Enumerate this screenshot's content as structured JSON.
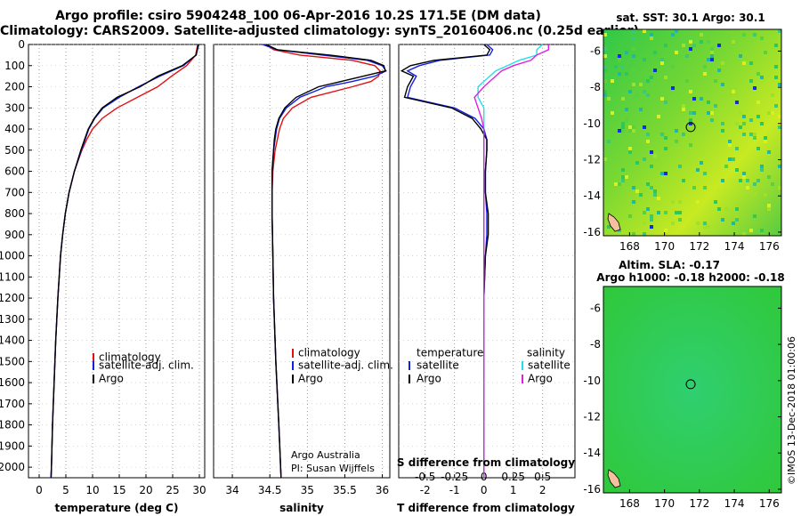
{
  "titles": {
    "line1": "Argo profile: csiro 5904248_100 06-Apr-2016 10.2S 171.5E (DM data)",
    "line2": "Climatology: CARS2009. Satellite-adjusted climatology: synTS_20160406.nc (0.25d earlier)"
  },
  "colors": {
    "climatology": "#e01010",
    "satellite": "#1020e0",
    "argo": "#000000",
    "sat_salinity": "#20e0e8",
    "argo_salinity": "#e020e0"
  },
  "chart_data": [
    {
      "type": "line",
      "name": "temperature-profile",
      "xlabel": "temperature (deg C)",
      "xlim": [
        -2,
        31
      ],
      "ylim": [
        2050,
        0
      ],
      "xticks": [
        "0",
        "5",
        "10",
        "15",
        "20",
        "25",
        "30"
      ],
      "yticks": [
        "0",
        "100",
        "200",
        "300",
        "400",
        "500",
        "600",
        "700",
        "800",
        "900",
        "1000",
        "1100",
        "1200",
        "1300",
        "1400",
        "1500",
        "1600",
        "1700",
        "1800",
        "1900",
        "2000"
      ],
      "depth": [
        0,
        50,
        100,
        150,
        200,
        250,
        300,
        350,
        400,
        450,
        500,
        600,
        700,
        800,
        900,
        1000,
        1200,
        1400,
        1600,
        1800,
        2000,
        2050
      ],
      "series": [
        {
          "name": "climatology",
          "values": [
            29.7,
            29.3,
            27.6,
            24.8,
            22.2,
            18.4,
            14.6,
            11.8,
            10.0,
            8.9,
            8.0,
            6.6,
            5.6,
            4.9,
            4.4,
            4.0,
            3.5,
            3.1,
            2.8,
            2.5,
            2.3,
            2.2
          ]
        },
        {
          "name": "satellite-adj. clim.",
          "values": [
            29.9,
            29.4,
            27.0,
            22.6,
            18.6,
            15.0,
            12.0,
            10.4,
            9.3,
            8.6,
            7.9,
            6.6,
            5.6,
            4.9,
            4.4,
            4.0,
            3.5,
            3.1,
            2.8,
            2.5,
            2.3,
            2.2
          ]
        },
        {
          "name": "Argo",
          "values": [
            29.8,
            29.4,
            26.8,
            22.2,
            18.9,
            14.6,
            11.8,
            10.3,
            9.2,
            8.5,
            7.8,
            6.6,
            5.6,
            4.9,
            4.4,
            4.0,
            3.5,
            3.1,
            2.8,
            2.5,
            2.3,
            2.25
          ]
        }
      ],
      "legend": [
        "climatology",
        "satellite-adj. clim.",
        "Argo"
      ]
    },
    {
      "type": "line",
      "name": "salinity-profile",
      "xlabel": "salinity",
      "xlim": [
        33.75,
        36.1
      ],
      "ylim": [
        2050,
        0
      ],
      "xticks": [
        "34",
        "34.5",
        "35",
        "35.5",
        "36"
      ],
      "depth": [
        0,
        25,
        50,
        75,
        100,
        125,
        150,
        175,
        200,
        250,
        300,
        350,
        400,
        450,
        500,
        600,
        700,
        800,
        1000,
        1200,
        1500,
        1800,
        2050
      ],
      "series": [
        {
          "name": "climatology",
          "values": [
            34.45,
            34.55,
            34.9,
            35.6,
            35.9,
            35.97,
            35.95,
            35.85,
            35.6,
            35.05,
            34.8,
            34.68,
            34.63,
            34.6,
            34.57,
            34.54,
            34.53,
            34.53,
            34.54,
            34.55,
            34.58,
            34.62,
            34.65
          ]
        },
        {
          "name": "satellite-adj. clim.",
          "values": [
            34.4,
            34.6,
            35.2,
            35.8,
            36.0,
            36.05,
            35.9,
            35.6,
            35.25,
            34.9,
            34.72,
            34.63,
            34.59,
            34.57,
            34.55,
            34.53,
            34.53,
            34.53,
            34.54,
            34.55,
            34.58,
            34.62,
            34.65
          ]
        },
        {
          "name": "Argo",
          "values": [
            34.45,
            34.6,
            35.3,
            35.85,
            36.02,
            36.04,
            35.75,
            35.45,
            35.15,
            34.85,
            34.7,
            34.62,
            34.58,
            34.56,
            34.55,
            34.53,
            34.53,
            34.53,
            34.54,
            34.55,
            34.58,
            34.62,
            34.65
          ]
        }
      ],
      "legend": [
        "climatology",
        "satellite-adj. clim.",
        "Argo"
      ],
      "annotation_line1": "Argo Australia",
      "annotation_line2": "PI: Susan Wijffels"
    },
    {
      "type": "line",
      "name": "difference-profile",
      "xlabel": "T difference from climatology",
      "top_axis_label": "S difference from climatology",
      "xlim": [
        -2.9,
        3.1
      ],
      "ylim": [
        2050,
        0
      ],
      "xticks": [
        "-2",
        "-1",
        "0",
        "1",
        "2"
      ],
      "top_ticks": [
        "-0.5",
        "-0.25",
        "0",
        "0.25",
        "0.5"
      ],
      "depth": [
        0,
        25,
        50,
        75,
        100,
        125,
        150,
        200,
        250,
        300,
        350,
        400,
        450,
        500,
        600,
        700,
        800,
        900,
        1000,
        1200,
        1400,
        1600,
        1800,
        2000,
        2050
      ],
      "series": [
        {
          "name": "temperature satellite",
          "values": [
            0.1,
            0.3,
            0.2,
            -1.5,
            -2.2,
            -2.6,
            -2.3,
            -2.5,
            -2.6,
            -1.0,
            -0.3,
            0.0,
            0.1,
            0.1,
            0.05,
            0.05,
            0.1,
            0.1,
            0.05,
            0.0,
            0.0,
            0.0,
            0.0,
            0.0,
            0.0
          ]
        },
        {
          "name": "temperature Argo",
          "values": [
            0.0,
            0.2,
            0.1,
            -1.7,
            -2.5,
            -2.8,
            -2.4,
            -2.6,
            -2.7,
            -1.1,
            -0.4,
            -0.1,
            0.1,
            0.1,
            0.05,
            0.05,
            0.15,
            0.15,
            0.05,
            0.0,
            0.0,
            0.0,
            0.0,
            0.0,
            0.0
          ]
        },
        {
          "name": "salinity satellite",
          "values": [
            0.5,
            0.45,
            0.45,
            0.3,
            0.2,
            0.1,
            0.05,
            -0.05,
            -0.05,
            0.0,
            0.0,
            0.0,
            0.0,
            0.0,
            0.0,
            0.0,
            0.0,
            0.0,
            0.0,
            0.0,
            0.0,
            0.0,
            0.0,
            0.0,
            0.0
          ]
        },
        {
          "name": "salinity Argo",
          "values": [
            0.55,
            0.55,
            0.45,
            0.4,
            0.25,
            0.15,
            0.1,
            0.0,
            -0.08,
            -0.05,
            -0.02,
            0.0,
            0.0,
            0.0,
            0.0,
            0.0,
            0.0,
            0.0,
            0.0,
            0.0,
            0.0,
            0.0,
            0.0,
            0.0,
            0.0
          ]
        }
      ],
      "legend_left_title": "temperature",
      "legend_right_title": "salinity",
      "legend_left": [
        "satellite",
        "Argo"
      ],
      "legend_right": [
        "satellite",
        "Argo"
      ]
    },
    {
      "type": "heatmap",
      "name": "sst-map",
      "title": "sat. SST: 30.1 Argo: 30.1",
      "xticks": [
        "168",
        "170",
        "172",
        "174",
        "176"
      ],
      "yticks": [
        "-6",
        "-8",
        "-10",
        "-12",
        "-14",
        "-16"
      ],
      "xlim": [
        166.5,
        176.7
      ],
      "ylim": [
        -16.2,
        -4.8
      ],
      "profile_lon": 171.5,
      "profile_lat": -10.2
    },
    {
      "type": "heatmap",
      "name": "sla-map",
      "title_line1": "Altim. SLA: -0.17",
      "title_line2": "Argo h1000: -0.18 h2000: -0.18",
      "xticks": [
        "168",
        "170",
        "172",
        "174",
        "176"
      ],
      "yticks": [
        "-6",
        "-8",
        "-10",
        "-12",
        "-14",
        "-16"
      ],
      "xlim": [
        166.5,
        176.7
      ],
      "ylim": [
        -16.2,
        -4.8
      ],
      "profile_lon": 171.5,
      "profile_lat": -10.2
    }
  ],
  "credit": "©IMOS 13-Dec-2018 01:00:06"
}
